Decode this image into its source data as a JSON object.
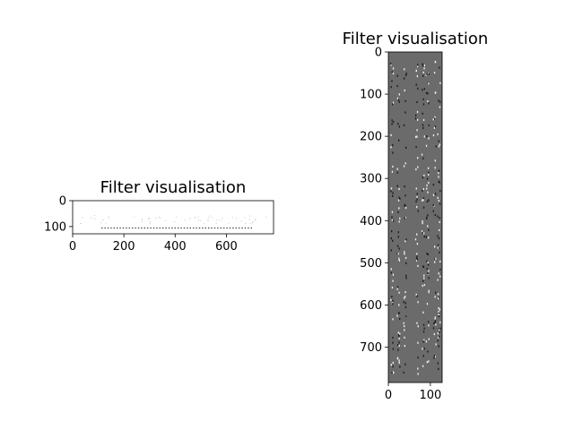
{
  "chart_data": [
    {
      "type": "heatmap",
      "title": "Filter visualisation",
      "xlabel": "",
      "ylabel": "",
      "xlim": [
        0,
        784
      ],
      "ylim": [
        128,
        0
      ],
      "xticks": [
        "0",
        "200",
        "400",
        "600"
      ],
      "yticks": [
        "0",
        "100"
      ],
      "background": "#ffffff",
      "mark_color": "#000000",
      "grid": false
    },
    {
      "type": "heatmap",
      "title": "Filter visualisation",
      "xlabel": "",
      "ylabel": "",
      "xlim": [
        0,
        128
      ],
      "ylim": [
        784,
        0
      ],
      "xticks": [
        "0",
        "100"
      ],
      "yticks": [
        "0",
        "100",
        "200",
        "300",
        "400",
        "500",
        "600",
        "700"
      ],
      "background": "#6b6b6b",
      "mark_color_dark": "#1a1a1a",
      "mark_color_light": "#ffffff",
      "grid": false
    }
  ]
}
